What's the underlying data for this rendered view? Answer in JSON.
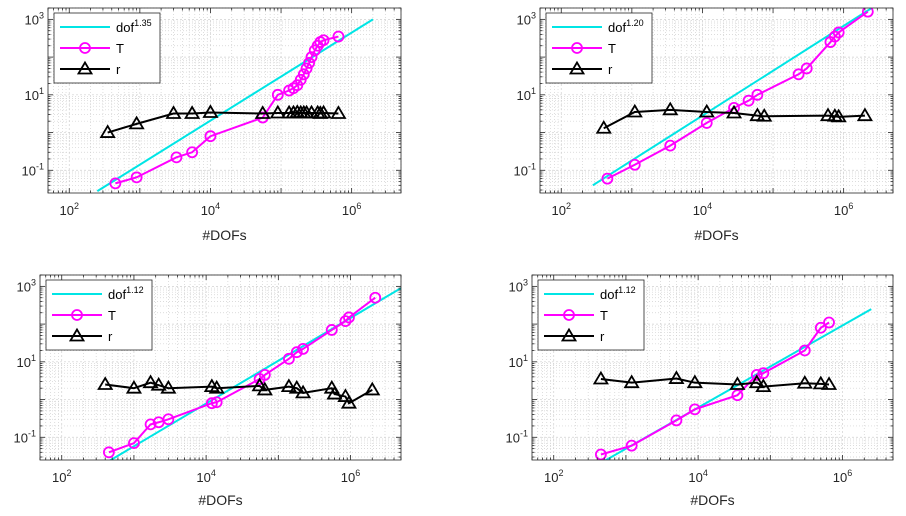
{
  "colors": {
    "fit": "#00e5e5",
    "T": "#ff00ff",
    "r": "#000000",
    "grid": "#d0d0d0",
    "axis": "#262626"
  },
  "chart_data": [
    {
      "type": "line",
      "xscale": "log",
      "yscale": "log",
      "xlabel": "#DOFs",
      "xlim": [
        50,
        5000000
      ],
      "ylim": [
        0.025,
        2000
      ],
      "xticks": [
        {
          "v": 100,
          "base": "10",
          "exp": "2"
        },
        {
          "v": 10000,
          "base": "10",
          "exp": "4"
        },
        {
          "v": 1000000,
          "base": "10",
          "exp": "6"
        }
      ],
      "yticks": [
        {
          "v": 0.1,
          "base": "10",
          "exp": "-1"
        },
        {
          "v": 10,
          "base": "10",
          "exp": "1"
        },
        {
          "v": 1000,
          "base": "10",
          "exp": "3"
        }
      ],
      "grid": true,
      "legend": {
        "position": "top-left",
        "entries": [
          {
            "base": "dof",
            "exp": "1.35"
          },
          {
            "base": "T",
            "exp": ""
          },
          {
            "base": "r",
            "exp": ""
          }
        ]
      },
      "fit": {
        "x": [
          250,
          2000000
        ],
        "y": [
          0.028,
          1000
        ]
      },
      "series": [
        {
          "name": "T",
          "marker": "circle",
          "x": [
            450,
            900,
            3300,
            5500,
            10000,
            55000,
            90000,
            130000,
            150000,
            170000,
            190000,
            210000,
            230000,
            250000,
            270000,
            300000,
            330000,
            360000,
            400000,
            650000
          ],
          "y": [
            0.045,
            0.065,
            0.22,
            0.3,
            0.8,
            2.5,
            10,
            13,
            15,
            18,
            25,
            35,
            50,
            70,
            100,
            150,
            200,
            250,
            280,
            350
          ]
        },
        {
          "name": "r",
          "marker": "triangle",
          "x": [
            350,
            900,
            3000,
            5500,
            10000,
            55000,
            90000,
            130000,
            150000,
            170000,
            190000,
            210000,
            230000,
            270000,
            330000,
            360000,
            400000,
            650000
          ],
          "y": [
            1.0,
            1.7,
            3.2,
            3.2,
            3.4,
            3.2,
            3.3,
            3.3,
            3.3,
            3.4,
            3.3,
            3.3,
            3.3,
            3.3,
            3.3,
            3.2,
            3.3,
            3.2
          ]
        }
      ]
    },
    {
      "type": "line",
      "xscale": "log",
      "yscale": "log",
      "xlabel": "#DOFs",
      "xlim": [
        50,
        5000000
      ],
      "ylim": [
        0.025,
        2000
      ],
      "xticks": [
        {
          "v": 100,
          "base": "10",
          "exp": "2"
        },
        {
          "v": 10000,
          "base": "10",
          "exp": "4"
        },
        {
          "v": 1000000,
          "base": "10",
          "exp": "6"
        }
      ],
      "yticks": [
        {
          "v": 0.1,
          "base": "10",
          "exp": "-1"
        },
        {
          "v": 10,
          "base": "10",
          "exp": "1"
        },
        {
          "v": 1000,
          "base": "10",
          "exp": "3"
        }
      ],
      "grid": true,
      "legend": {
        "position": "top-left",
        "entries": [
          {
            "base": "dof",
            "exp": "1.20"
          },
          {
            "base": "T",
            "exp": ""
          },
          {
            "base": "r",
            "exp": ""
          }
        ]
      },
      "fit": {
        "x": [
          280,
          2500000
        ],
        "y": [
          0.04,
          2000
        ]
      },
      "series": [
        {
          "name": "T",
          "marker": "circle",
          "x": [
            450,
            1100,
            3500,
            11500,
            28000,
            45000,
            60000,
            230000,
            300000,
            650000,
            750000,
            850000,
            2200000
          ],
          "y": [
            0.06,
            0.14,
            0.45,
            1.8,
            4.5,
            7,
            10,
            35,
            50,
            250,
            350,
            450,
            1600
          ]
        },
        {
          "name": "r",
          "marker": "triangle",
          "x": [
            400,
            1100,
            3500,
            11500,
            28000,
            60000,
            75000,
            600000,
            750000,
            850000,
            2000000
          ],
          "y": [
            1.3,
            3.5,
            4.0,
            3.5,
            3.3,
            2.8,
            2.7,
            2.8,
            2.7,
            2.6,
            2.8
          ]
        }
      ]
    },
    {
      "type": "line",
      "xscale": "log",
      "yscale": "log",
      "xlabel": "#DOFs",
      "xlim": [
        50,
        5000000
      ],
      "ylim": [
        0.025,
        2000
      ],
      "xticks": [
        {
          "v": 100,
          "base": "10",
          "exp": "2"
        },
        {
          "v": 10000,
          "base": "10",
          "exp": "4"
        },
        {
          "v": 1000000,
          "base": "10",
          "exp": "6"
        }
      ],
      "yticks": [
        {
          "v": 0.1,
          "base": "10",
          "exp": "-1"
        },
        {
          "v": 10,
          "base": "10",
          "exp": "1"
        },
        {
          "v": 1000,
          "base": "10",
          "exp": "3"
        }
      ],
      "grid": true,
      "legend": {
        "position": "top-left",
        "entries": [
          {
            "base": "dof",
            "exp": "1.12"
          },
          {
            "base": "T",
            "exp": ""
          },
          {
            "base": "r",
            "exp": ""
          }
        ]
      },
      "fit": {
        "x": [
          250,
          5000000
        ],
        "y": [
          0.012,
          900
        ]
      },
      "series": [
        {
          "name": "T",
          "marker": "circle",
          "x": [
            450,
            1000,
            1700,
            2200,
            3000,
            12000,
            14000,
            55000,
            65000,
            140000,
            180000,
            220000,
            550000,
            850000,
            950000,
            2200000
          ],
          "y": [
            0.04,
            0.07,
            0.22,
            0.25,
            0.3,
            0.8,
            0.85,
            3.5,
            4.5,
            12,
            18,
            22,
            70,
            120,
            150,
            500
          ]
        },
        {
          "name": "r",
          "marker": "triangle",
          "x": [
            400,
            1000,
            1700,
            2200,
            3000,
            12000,
            14000,
            55000,
            65000,
            140000,
            180000,
            220000,
            550000,
            600000,
            850000,
            950000,
            2000000
          ],
          "y": [
            2.5,
            2.0,
            2.8,
            2.4,
            2.0,
            2.2,
            2.0,
            2.3,
            1.8,
            2.2,
            2.0,
            1.5,
            2.0,
            1.4,
            1.2,
            0.8,
            1.8
          ]
        }
      ]
    },
    {
      "type": "line",
      "xscale": "log",
      "yscale": "log",
      "xlabel": "#DOFs",
      "xlim": [
        50,
        5000000
      ],
      "ylim": [
        0.025,
        2000
      ],
      "xticks": [
        {
          "v": 100,
          "base": "10",
          "exp": "2"
        },
        {
          "v": 10000,
          "base": "10",
          "exp": "4"
        },
        {
          "v": 1000000,
          "base": "10",
          "exp": "6"
        }
      ],
      "yticks": [
        {
          "v": 0.1,
          "base": "10",
          "exp": "-1"
        },
        {
          "v": 10,
          "base": "10",
          "exp": "1"
        },
        {
          "v": 1000,
          "base": "10",
          "exp": "3"
        }
      ],
      "grid": true,
      "legend": {
        "position": "top-left",
        "entries": [
          {
            "base": "dof",
            "exp": "1.12"
          },
          {
            "base": "T",
            "exp": ""
          },
          {
            "base": "r",
            "exp": ""
          }
        ]
      },
      "fit": {
        "x": [
          250,
          2500000
        ],
        "y": [
          0.011,
          250
        ]
      },
      "series": [
        {
          "name": "T",
          "marker": "circle",
          "x": [
            450,
            1200,
            5000,
            9000,
            35000,
            65000,
            80000,
            300000,
            500000,
            650000
          ],
          "y": [
            0.035,
            0.06,
            0.28,
            0.55,
            1.3,
            4.5,
            5,
            20,
            80,
            110
          ]
        },
        {
          "name": "r",
          "marker": "triangle",
          "x": [
            450,
            1200,
            5000,
            9000,
            35000,
            65000,
            80000,
            300000,
            500000,
            650000
          ],
          "y": [
            3.5,
            2.8,
            3.6,
            2.8,
            2.5,
            2.8,
            2.2,
            2.7,
            2.6,
            2.5
          ]
        }
      ]
    }
  ]
}
